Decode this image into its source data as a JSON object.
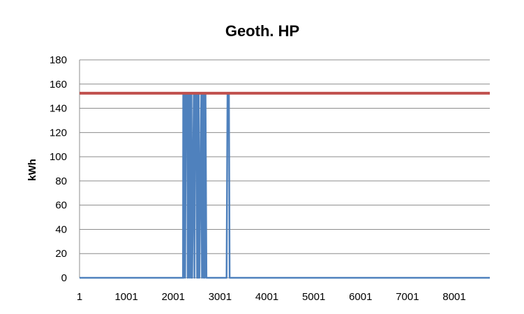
{
  "chart_data": {
    "type": "line",
    "title": "Geoth. HP",
    "xlabel": "",
    "ylabel": "kWh",
    "xlim": [
      1,
      8760
    ],
    "ylim": [
      0,
      180
    ],
    "yticks": [
      0,
      20,
      40,
      60,
      80,
      100,
      120,
      140,
      160,
      180
    ],
    "xticks": [
      1,
      1001,
      2001,
      3001,
      4001,
      5001,
      6001,
      7001,
      8001
    ],
    "grid": true,
    "legend": "none",
    "series": [
      {
        "color": "#4f81bd",
        "points": [
          [
            1,
            0
          ],
          [
            2210,
            0
          ],
          [
            2215,
            152
          ],
          [
            2225,
            0
          ],
          [
            2240,
            152
          ],
          [
            2255,
            0
          ],
          [
            2270,
            152
          ],
          [
            2300,
            152
          ],
          [
            2310,
            0
          ],
          [
            2325,
            152
          ],
          [
            2345,
            0
          ],
          [
            2360,
            152
          ],
          [
            2380,
            0
          ],
          [
            2390,
            152
          ],
          [
            2405,
            0
          ],
          [
            2440,
            152
          ],
          [
            2455,
            0
          ],
          [
            2475,
            152
          ],
          [
            2500,
            152
          ],
          [
            2510,
            0
          ],
          [
            2520,
            152
          ],
          [
            2535,
            0
          ],
          [
            2545,
            152
          ],
          [
            2560,
            0
          ],
          [
            2600,
            152
          ],
          [
            2615,
            0
          ],
          [
            2635,
            152
          ],
          [
            2650,
            0
          ],
          [
            2660,
            152
          ],
          [
            2675,
            0
          ],
          [
            2690,
            152
          ],
          [
            2710,
            0
          ],
          [
            3140,
            0
          ],
          [
            3160,
            152
          ],
          [
            3190,
            152
          ],
          [
            3205,
            0
          ],
          [
            8760,
            0
          ]
        ]
      },
      {
        "color": "#c0504d",
        "points": [
          [
            1,
            152.5
          ],
          [
            8760,
            152.5
          ]
        ]
      }
    ]
  }
}
